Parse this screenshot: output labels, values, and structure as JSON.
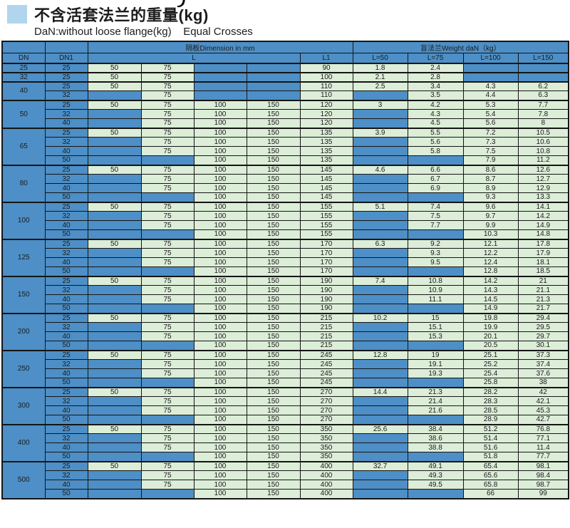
{
  "title": "不含活套法兰的重量(kg)",
  "subtitle": "DaN:without loose flange(kg)    Equal Crosses",
  "colors": {
    "blue": "#4d8fc6",
    "green": "#dcedd8",
    "border": "#151515",
    "text": "#1c1c1c",
    "title_square": "#b0d5ec"
  },
  "table": {
    "header": {
      "dim_span": "隔板Dimension    in  mm",
      "weight_span": "盲法兰Weight    daN（kg）",
      "dn": "DN",
      "dn1": "DN1",
      "l": "L",
      "l1": "L1",
      "weight_cols": [
        "L=50",
        "L=75",
        "L=100",
        "L=150"
      ]
    },
    "groups": [
      {
        "dn": "25",
        "rows": [
          {
            "dn1": "25",
            "l": [
              "50",
              "75",
              "",
              ""
            ],
            "l1": "90",
            "w": [
              "1.8",
              "2.4",
              "",
              ""
            ]
          }
        ]
      },
      {
        "dn": "32",
        "rows": [
          {
            "dn1": "25",
            "l": [
              "50",
              "75",
              "",
              ""
            ],
            "l1": "100",
            "w": [
              "2.1",
              "2.8",
              "",
              ""
            ]
          }
        ]
      },
      {
        "dn": "40",
        "rows": [
          {
            "dn1": "25",
            "l": [
              "50",
              "75",
              "",
              ""
            ],
            "l1": "110",
            "w": [
              "2.5",
              "3.4",
              "4.3",
              "6.2"
            ]
          },
          {
            "dn1": "32",
            "l": [
              "",
              "75",
              "",
              ""
            ],
            "l1": "110",
            "w": [
              "",
              "3.5",
              "4.4",
              "6.3"
            ]
          }
        ]
      },
      {
        "dn": "50",
        "rows": [
          {
            "dn1": "25",
            "l": [
              "50",
              "75",
              "100",
              "150"
            ],
            "l1": "120",
            "w": [
              "3",
              "4.2",
              "5.3",
              "7.7"
            ]
          },
          {
            "dn1": "32",
            "l": [
              "",
              "75",
              "100",
              "150"
            ],
            "l1": "120",
            "w": [
              "",
              "4.3",
              "5.4",
              "7.8"
            ]
          },
          {
            "dn1": "40",
            "l": [
              "",
              "75",
              "100",
              "150"
            ],
            "l1": "120",
            "w": [
              "",
              "4.5",
              "5.6",
              "8"
            ]
          }
        ]
      },
      {
        "dn": "65",
        "rows": [
          {
            "dn1": "25",
            "l": [
              "50",
              "75",
              "100",
              "150"
            ],
            "l1": "135",
            "w": [
              "3.9",
              "5.5",
              "7.2",
              "10.5"
            ]
          },
          {
            "dn1": "32",
            "l": [
              "",
              "75",
              "100",
              "150"
            ],
            "l1": "135",
            "w": [
              "",
              "5.6",
              "7.3",
              "10.6"
            ]
          },
          {
            "dn1": "40",
            "l": [
              "",
              "75",
              "100",
              "150"
            ],
            "l1": "135",
            "w": [
              "",
              "5.8",
              "7.5",
              "10.8"
            ]
          },
          {
            "dn1": "50",
            "l": [
              "",
              "",
              "100",
              "150"
            ],
            "l1": "135",
            "w": [
              "",
              "",
              "7.9",
              "11.2"
            ]
          }
        ]
      },
      {
        "dn": "80",
        "rows": [
          {
            "dn1": "25",
            "l": [
              "50",
              "75",
              "100",
              "150"
            ],
            "l1": "145",
            "w": [
              "4.6",
              "6.6",
              "8.6",
              "12.6"
            ]
          },
          {
            "dn1": "32",
            "l": [
              "",
              "75",
              "100",
              "150"
            ],
            "l1": "145",
            "w": [
              "",
              "6.7",
              "8.7",
              "12.7"
            ]
          },
          {
            "dn1": "40",
            "l": [
              "",
              "75",
              "100",
              "150"
            ],
            "l1": "145",
            "w": [
              "",
              "6.9",
              "8.9",
              "12.9"
            ]
          },
          {
            "dn1": "50",
            "l": [
              "",
              "",
              "100",
              "150"
            ],
            "l1": "145",
            "w": [
              "",
              "",
              "9.3",
              "13.3"
            ]
          }
        ]
      },
      {
        "dn": "100",
        "rows": [
          {
            "dn1": "25",
            "l": [
              "50",
              "75",
              "100",
              "150"
            ],
            "l1": "155",
            "w": [
              "5.1",
              "7.4",
              "9.6",
              "14.1"
            ]
          },
          {
            "dn1": "32",
            "l": [
              "",
              "75",
              "100",
              "150"
            ],
            "l1": "155",
            "w": [
              "",
              "7.5",
              "9.7",
              "14.2"
            ]
          },
          {
            "dn1": "40",
            "l": [
              "",
              "75",
              "100",
              "150"
            ],
            "l1": "155",
            "w": [
              "",
              "7.7",
              "9.9",
              "14.9"
            ]
          },
          {
            "dn1": "50",
            "l": [
              "",
              "",
              "100",
              "150"
            ],
            "l1": "155",
            "w": [
              "",
              "",
              "10.3",
              "14.8"
            ]
          }
        ]
      },
      {
        "dn": "125",
        "rows": [
          {
            "dn1": "25",
            "l": [
              "50",
              "75",
              "100",
              "150"
            ],
            "l1": "170",
            "w": [
              "6.3",
              "9.2",
              "12.1",
              "17.8"
            ]
          },
          {
            "dn1": "32",
            "l": [
              "",
              "75",
              "100",
              "150"
            ],
            "l1": "170",
            "w": [
              "",
              "9.3",
              "12.2",
              "17.9"
            ]
          },
          {
            "dn1": "40",
            "l": [
              "",
              "75",
              "100",
              "150"
            ],
            "l1": "170",
            "w": [
              "",
              "9.5",
              "12.4",
              "18.1"
            ]
          },
          {
            "dn1": "50",
            "l": [
              "",
              "",
              "100",
              "150"
            ],
            "l1": "170",
            "w": [
              "",
              "",
              "12.8",
              "18.5"
            ]
          }
        ]
      },
      {
        "dn": "150",
        "rows": [
          {
            "dn1": "25",
            "l": [
              "50",
              "75",
              "100",
              "150"
            ],
            "l1": "190",
            "w": [
              "7.4",
              "10.8",
              "14.2",
              "21"
            ]
          },
          {
            "dn1": "32",
            "l": [
              "",
              "75",
              "100",
              "150"
            ],
            "l1": "190",
            "w": [
              "",
              "10.9",
              "14.3",
              "21.1"
            ]
          },
          {
            "dn1": "40",
            "l": [
              "",
              "75",
              "100",
              "150"
            ],
            "l1": "190",
            "w": [
              "",
              "11.1",
              "14.5",
              "21.3"
            ]
          },
          {
            "dn1": "50",
            "l": [
              "",
              "",
              "100",
              "150"
            ],
            "l1": "190",
            "w": [
              "",
              "",
              "14.9",
              "21.7"
            ]
          }
        ]
      },
      {
        "dn": "200",
        "rows": [
          {
            "dn1": "25",
            "l": [
              "50",
              "75",
              "100",
              "150"
            ],
            "l1": "215",
            "w": [
              "10.2",
              "15",
              "19.8",
              "29.4"
            ]
          },
          {
            "dn1": "32",
            "l": [
              "",
              "75",
              "100",
              "150"
            ],
            "l1": "215",
            "w": [
              "",
              "15.1",
              "19.9",
              "29.5"
            ]
          },
          {
            "dn1": "40",
            "l": [
              "",
              "75",
              "100",
              "150"
            ],
            "l1": "215",
            "w": [
              "",
              "15.3",
              "20.1",
              "29.7"
            ]
          },
          {
            "dn1": "50",
            "l": [
              "",
              "",
              "100",
              "150"
            ],
            "l1": "215",
            "w": [
              "",
              "",
              "20.5",
              "30.1"
            ]
          }
        ]
      },
      {
        "dn": "250",
        "rows": [
          {
            "dn1": "25",
            "l": [
              "50",
              "75",
              "100",
              "150"
            ],
            "l1": "245",
            "w": [
              "12.8",
              "19",
              "25.1",
              "37.3"
            ]
          },
          {
            "dn1": "32",
            "l": [
              "",
              "75",
              "100",
              "150"
            ],
            "l1": "245",
            "w": [
              "",
              "19.1",
              "25.2",
              "37.4"
            ]
          },
          {
            "dn1": "40",
            "l": [
              "",
              "75",
              "100",
              "150"
            ],
            "l1": "245",
            "w": [
              "",
              "19.3",
              "25.4",
              "37.6"
            ]
          },
          {
            "dn1": "50",
            "l": [
              "",
              "",
              "100",
              "150"
            ],
            "l1": "245",
            "w": [
              "",
              "",
              "25.8",
              "38"
            ]
          }
        ]
      },
      {
        "dn": "300",
        "rows": [
          {
            "dn1": "25",
            "l": [
              "50",
              "75",
              "100",
              "150"
            ],
            "l1": "270",
            "w": [
              "14.4",
              "21.3",
              "28.2",
              "42"
            ]
          },
          {
            "dn1": "32",
            "l": [
              "",
              "75",
              "100",
              "150"
            ],
            "l1": "270",
            "w": [
              "",
              "21.4",
              "28.3",
              "42.1"
            ]
          },
          {
            "dn1": "40",
            "l": [
              "",
              "75",
              "100",
              "150"
            ],
            "l1": "270",
            "w": [
              "",
              "21.6",
              "28.5",
              "45.3"
            ]
          },
          {
            "dn1": "50",
            "l": [
              "",
              "",
              "100",
              "150"
            ],
            "l1": "270",
            "w": [
              "",
              "",
              "28.9",
              "42.7"
            ]
          }
        ]
      },
      {
        "dn": "400",
        "rows": [
          {
            "dn1": "25",
            "l": [
              "50",
              "75",
              "100",
              "150"
            ],
            "l1": "350",
            "w": [
              "25.6",
              "38.4",
              "51.2",
              "76.8"
            ]
          },
          {
            "dn1": "32",
            "l": [
              "",
              "75",
              "100",
              "150"
            ],
            "l1": "350",
            "w": [
              "",
              "38.6",
              "51.4",
              "77.1"
            ]
          },
          {
            "dn1": "40",
            "l": [
              "",
              "75",
              "100",
              "150"
            ],
            "l1": "350",
            "w": [
              "",
              "38.8",
              "51.6",
              "11.4"
            ]
          },
          {
            "dn1": "50",
            "l": [
              "",
              "",
              "100",
              "150"
            ],
            "l1": "350",
            "w": [
              "",
              "",
              "51.8",
              "77.7"
            ]
          }
        ]
      },
      {
        "dn": "500",
        "rows": [
          {
            "dn1": "25",
            "l": [
              "50",
              "75",
              "100",
              "150"
            ],
            "l1": "400",
            "w": [
              "32.7",
              "49.1",
              "65.4",
              "98.1"
            ]
          },
          {
            "dn1": "32",
            "l": [
              "",
              "75",
              "100",
              "150"
            ],
            "l1": "400",
            "w": [
              "",
              "49.3",
              "65.6",
              "98.4"
            ]
          },
          {
            "dn1": "40",
            "l": [
              "",
              "75",
              "100",
              "150"
            ],
            "l1": "400",
            "w": [
              "",
              "49.5",
              "65.8",
              "98.7"
            ]
          },
          {
            "dn1": "50",
            "l": [
              "",
              "",
              "100",
              "150"
            ],
            "l1": "400",
            "w": [
              "",
              "",
              "66",
              "99"
            ]
          }
        ]
      }
    ]
  }
}
